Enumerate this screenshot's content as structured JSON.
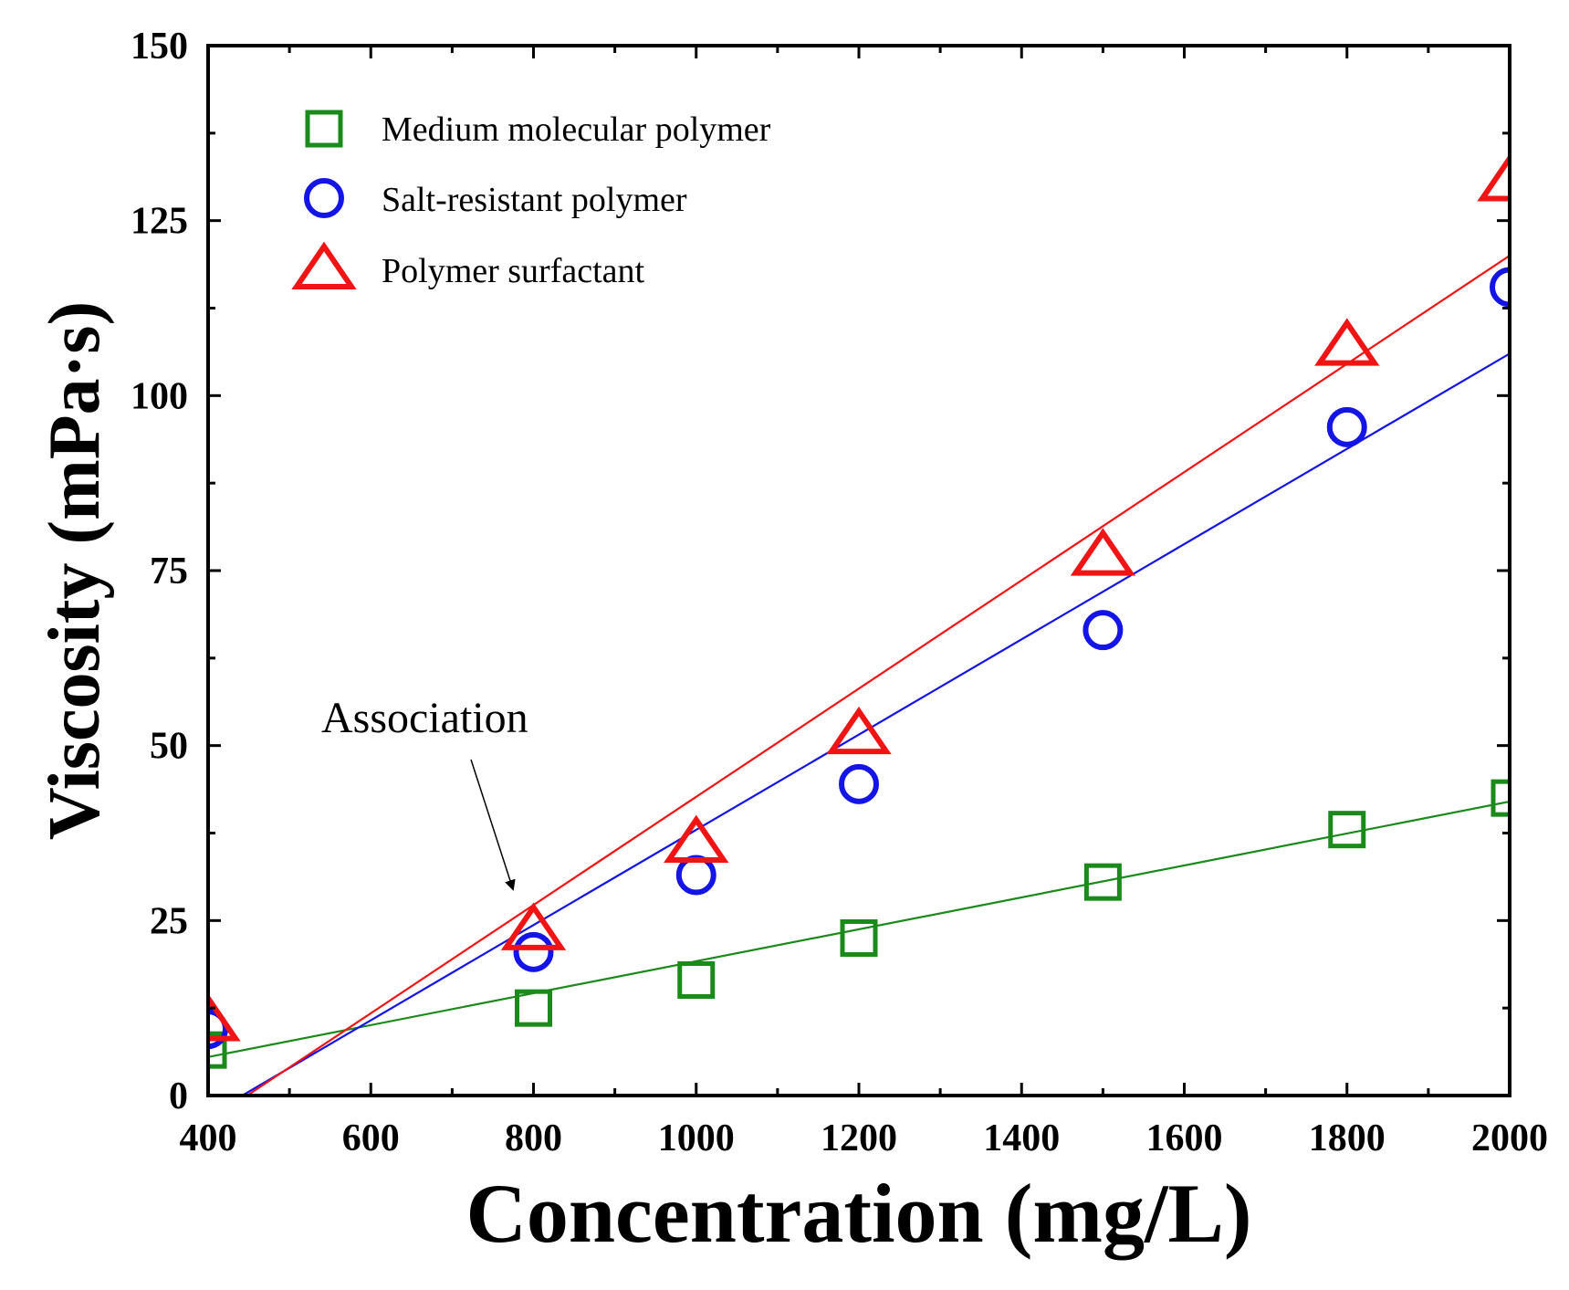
{
  "chart_data": {
    "type": "scatter",
    "xlabel": "Concentration (mg/L)",
    "ylabel": "Viscosity (mPa·s)",
    "xlim": [
      400,
      2000
    ],
    "ylim": [
      0,
      150
    ],
    "x_ticks": [
      "400",
      "600",
      "800",
      "1000",
      "1200",
      "1400",
      "1600",
      "1800",
      "2000"
    ],
    "y_ticks": [
      "0",
      "25",
      "50",
      "75",
      "100",
      "125",
      "150"
    ],
    "legend_position": "top-left",
    "series": [
      {
        "name": "Medium molecular polymer",
        "marker": "square",
        "color": "#1a8a1a",
        "x": [
          400,
          800,
          1000,
          1200,
          1500,
          1800,
          2000
        ],
        "values": [
          6.5,
          12.5,
          16.5,
          22.5,
          30.5,
          38,
          42.5
        ],
        "fit_line": [
          [
            400,
            5.5
          ],
          [
            2000,
            42
          ]
        ]
      },
      {
        "name": "Salt-resistant polymer",
        "marker": "circle",
        "color": "#1414e6",
        "x": [
          400,
          800,
          1000,
          1200,
          1500,
          1800,
          2000
        ],
        "values": [
          9.5,
          20.5,
          31.5,
          44.5,
          66.5,
          95.5,
          115.5
        ],
        "fit_line": [
          [
            442,
            0
          ],
          [
            2000,
            106
          ]
        ]
      },
      {
        "name": "Polymer surfactant",
        "marker": "triangle",
        "color": "#f01414",
        "x": [
          400,
          800,
          1000,
          1200,
          1500,
          1800,
          2000
        ],
        "values": [
          10.5,
          23.5,
          36,
          51.5,
          77,
          107,
          130.5
        ],
        "fit_line": [
          [
            448,
            0
          ],
          [
            2000,
            120
          ]
        ]
      }
    ],
    "annotations": [
      {
        "text": "Association",
        "points_to": [
          800,
          26
        ]
      }
    ]
  }
}
